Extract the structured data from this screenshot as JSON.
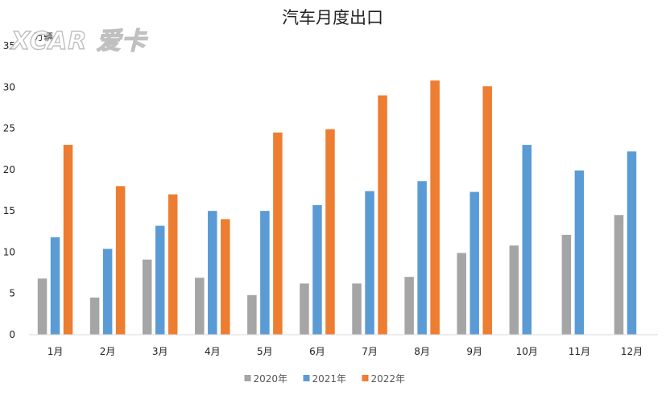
{
  "chart_data": {
    "type": "bar",
    "title": "汽车月度出口",
    "unit_label": "万辆",
    "xlabel": "",
    "ylabel": "",
    "categories": [
      "1月",
      "2月",
      "3月",
      "4月",
      "5月",
      "6月",
      "7月",
      "8月",
      "9月",
      "10月",
      "11月",
      "12月"
    ],
    "series": [
      {
        "name": "2020年",
        "color": "#a5a5a5",
        "values": [
          6.8,
          4.5,
          9.1,
          6.9,
          4.8,
          6.2,
          6.2,
          7.0,
          9.9,
          10.8,
          12.1,
          14.5
        ]
      },
      {
        "name": "2021年",
        "color": "#5b9bd5",
        "values": [
          11.8,
          10.4,
          13.2,
          15.0,
          15.0,
          15.7,
          17.4,
          18.6,
          17.3,
          23.0,
          19.9,
          22.2
        ]
      },
      {
        "name": "2022年",
        "color": "#ed7d31",
        "values": [
          23.0,
          18.0,
          17.0,
          14.0,
          24.5,
          24.9,
          29.0,
          30.8,
          30.1,
          null,
          null,
          null
        ]
      }
    ],
    "ylim": [
      0,
      35
    ],
    "yticks": [
      0,
      5,
      10,
      15,
      20,
      25,
      30,
      35
    ],
    "grid": false,
    "legend": "bottom"
  },
  "watermark": "XCAR 爱卡"
}
